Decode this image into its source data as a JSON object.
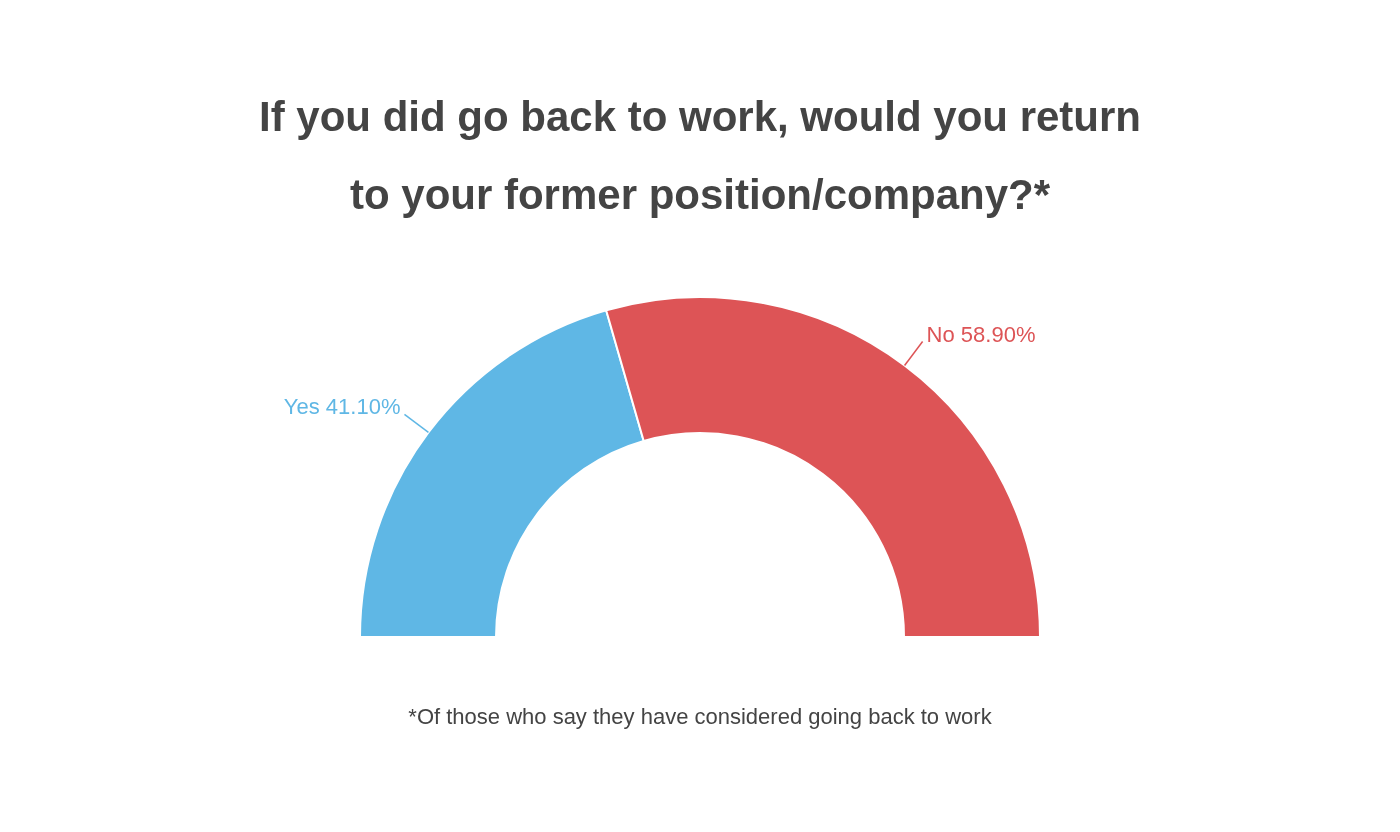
{
  "chart_data": {
    "type": "donut",
    "title": "If you did go back to work, would you return to your former position/company?*",
    "categories": [
      "Yes",
      "No"
    ],
    "values": [
      41.1,
      58.9
    ],
    "value_labels": [
      "41.10%",
      "58.90%"
    ],
    "colors": [
      "#5fb7e5",
      "#dd5456"
    ],
    "legend": false,
    "annotations": [
      "*Of those who say they have considered going back to work"
    ]
  }
}
